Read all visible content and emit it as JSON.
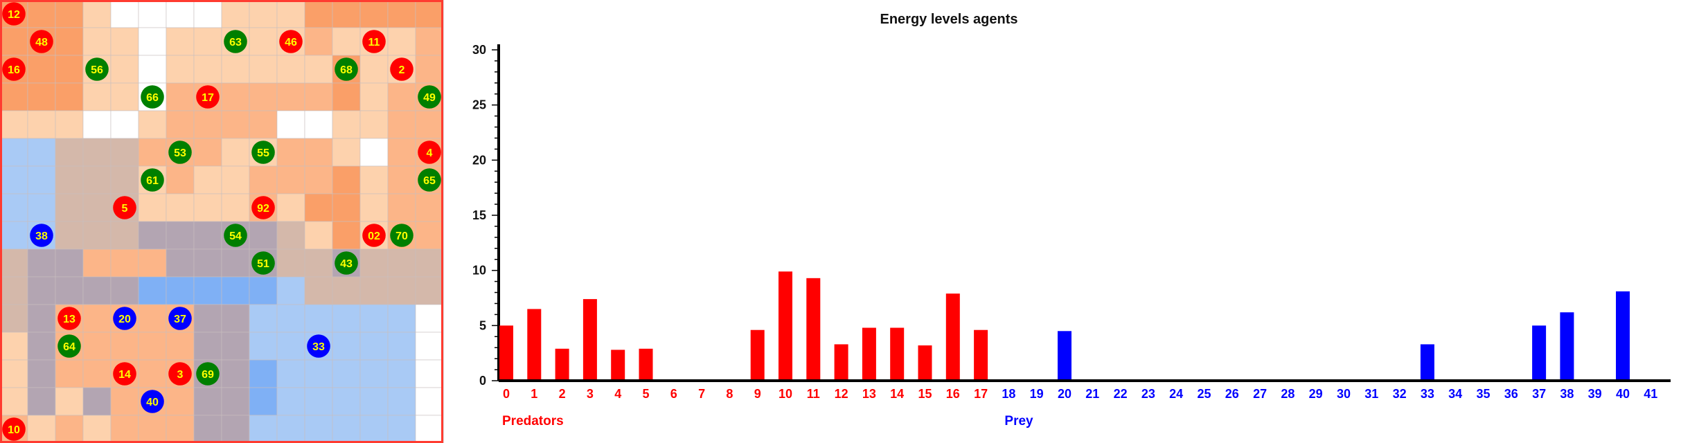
{
  "grid": {
    "rows": 16,
    "cols": 16,
    "palette": {
      "W": "#ffffff",
      "L": "#fdd2ad",
      "M": "#fcb588",
      "D": "#fa9f68",
      "T": "#d4b8aa",
      "G": "#b3a5b2",
      "B": "#a9caf5",
      "C": "#7fb0f5"
    },
    "cells": [
      "DDDLWWWWLLLDDDDD",
      "DDDLLWLLLLLMLLLM",
      "DDDLLWLLLLLLDLLM",
      "DDDLLWMMMMMMDLMM",
      "LLLWWLMMMMWWLLMM",
      "BBTTTMMMLLMMLWMM",
      "BBTTTLMLLMMMDLMM",
      "BBTTTLLLLMLDDLMM",
      "BBTTTGGGGGTLDLMM",
      "TGGMMMGGGGTTGTTT",
      "TGGGGCCCCCBTTTTT",
      "TGMMMMMGGBBBBBBW",
      "LGMMMMMGGBBBBBBW",
      "LGMMMMMGGCBBBBBW",
      "LGLGMMMGGCBBBBBW",
      "MLMLMMMGGBBBBBBW"
    ],
    "agents": [
      {
        "label": "12",
        "color": "#ff0000",
        "col": 0,
        "row": 0
      },
      {
        "label": "48",
        "color": "#ff0000",
        "col": 1,
        "row": 1
      },
      {
        "label": "63",
        "color": "#007f00",
        "col": 8,
        "row": 1
      },
      {
        "label": "46",
        "color": "#ff0000",
        "col": 10,
        "row": 1
      },
      {
        "label": "11",
        "color": "#ff0000",
        "col": 13,
        "row": 1
      },
      {
        "label": "16",
        "color": "#ff0000",
        "col": 0,
        "row": 2
      },
      {
        "label": "56",
        "color": "#007f00",
        "col": 3,
        "row": 2
      },
      {
        "label": "68",
        "color": "#007f00",
        "col": 12,
        "row": 2
      },
      {
        "label": "2",
        "color": "#ff0000",
        "col": 14,
        "row": 2
      },
      {
        "label": "66",
        "color": "#007f00",
        "col": 5,
        "row": 3
      },
      {
        "label": "17",
        "color": "#ff0000",
        "col": 7,
        "row": 3
      },
      {
        "label": "49",
        "color": "#007f00",
        "col": 15,
        "row": 3
      },
      {
        "label": "53",
        "color": "#007f00",
        "col": 6,
        "row": 5
      },
      {
        "label": "55",
        "color": "#007f00",
        "col": 9,
        "row": 5
      },
      {
        "label": "4",
        "color": "#ff0000",
        "col": 15,
        "row": 5
      },
      {
        "label": "61",
        "color": "#007f00",
        "col": 5,
        "row": 6
      },
      {
        "label": "65",
        "color": "#007f00",
        "col": 15,
        "row": 6
      },
      {
        "label": "5",
        "color": "#ff0000",
        "col": 4,
        "row": 7
      },
      {
        "label": "92",
        "color": "#ff0000",
        "col": 9,
        "row": 7
      },
      {
        "label": "38",
        "color": "#0000ff",
        "col": 1,
        "row": 8
      },
      {
        "label": "54",
        "color": "#007f00",
        "col": 8,
        "row": 8
      },
      {
        "label": "02",
        "color": "#ff0000",
        "col": 13,
        "row": 8
      },
      {
        "label": "70",
        "color": "#007f00",
        "col": 14,
        "row": 8
      },
      {
        "label": "51",
        "color": "#007f00",
        "col": 9,
        "row": 9
      },
      {
        "label": "43",
        "color": "#007f00",
        "col": 12,
        "row": 9
      },
      {
        "label": "13",
        "color": "#ff0000",
        "col": 2,
        "row": 11
      },
      {
        "label": "20",
        "color": "#0000ff",
        "col": 4,
        "row": 11
      },
      {
        "label": "37",
        "color": "#0000ff",
        "col": 6,
        "row": 11
      },
      {
        "label": "64",
        "color": "#007f00",
        "col": 2,
        "row": 12
      },
      {
        "label": "33",
        "color": "#0000ff",
        "col": 11,
        "row": 12
      },
      {
        "label": "14",
        "color": "#ff0000",
        "col": 4,
        "row": 13
      },
      {
        "label": "3",
        "color": "#ff0000",
        "col": 6,
        "row": 13
      },
      {
        "label": "69",
        "color": "#007f00",
        "col": 7,
        "row": 13
      },
      {
        "label": "40",
        "color": "#0000ff",
        "col": 5,
        "row": 14
      },
      {
        "label": "10",
        "color": "#ff0000",
        "col": 0,
        "row": 15
      }
    ]
  },
  "chart_data": {
    "type": "bar",
    "title": "Energy levels agents",
    "xlabel": "",
    "ylabel": "",
    "ylim": [
      0,
      30
    ],
    "yticks": [
      0,
      5,
      10,
      15,
      20,
      25,
      30
    ],
    "categories": [
      "0",
      "1",
      "2",
      "3",
      "4",
      "5",
      "6",
      "7",
      "8",
      "9",
      "10",
      "11",
      "12",
      "13",
      "14",
      "15",
      "16",
      "17",
      "18",
      "19",
      "20",
      "21",
      "22",
      "23",
      "24",
      "25",
      "26",
      "27",
      "28",
      "29",
      "30",
      "31",
      "32",
      "33",
      "34",
      "35",
      "36",
      "37",
      "38",
      "39",
      "40",
      "41"
    ],
    "values": [
      5.0,
      6.5,
      2.9,
      7.4,
      2.8,
      2.9,
      0,
      0,
      0,
      4.6,
      9.9,
      9.3,
      3.3,
      4.8,
      4.8,
      3.2,
      7.9,
      4.6,
      0,
      0,
      4.5,
      0,
      0,
      0,
      0,
      0,
      0,
      0,
      0,
      0,
      0,
      0,
      0,
      3.3,
      0,
      0,
      0,
      5.0,
      6.2,
      0,
      8.1,
      0
    ],
    "groups": [
      {
        "name": "Predators",
        "from": 0,
        "to": 17,
        "color": "#ff0000"
      },
      {
        "name": "Prey",
        "from": 18,
        "to": 41,
        "color": "#0000ff"
      }
    ]
  }
}
